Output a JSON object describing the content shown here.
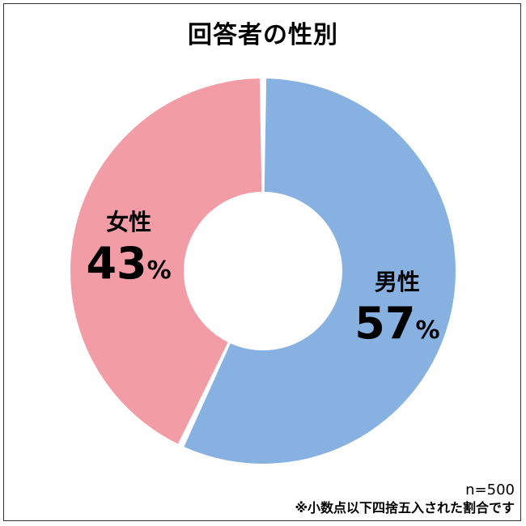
{
  "chart_data": {
    "type": "pie",
    "title": "回答者の性別",
    "categories": [
      "男性",
      "女性"
    ],
    "values": [
      57,
      43
    ],
    "value_labels": [
      "57",
      "43"
    ],
    "unit": "%",
    "colors": [
      "#87b1e1",
      "#f29ca6"
    ],
    "donut": true,
    "start_angle": "12 o'clock",
    "direction": "clockwise",
    "legend": "none"
  },
  "footer": {
    "sample_size": "n=500",
    "rounding_note": "※小数点以下四捨五入された割合です"
  }
}
